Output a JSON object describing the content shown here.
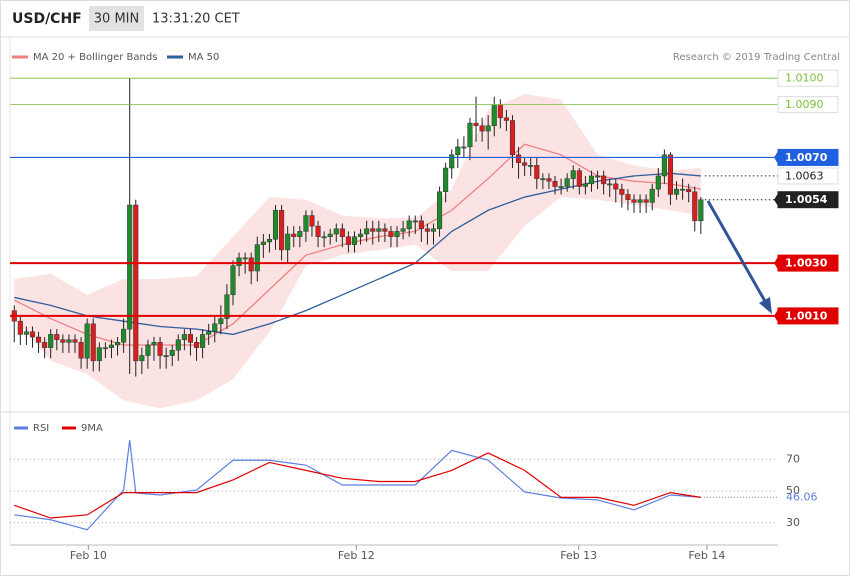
{
  "header": {
    "symbol": "USD/CHF",
    "interval": "30 MIN",
    "time": "13:31:20 CET"
  },
  "chart_data": [
    {
      "type": "candlestick",
      "credit": "Research © 2019 Trading Central",
      "up_color": "#1f8a2a",
      "down_color": "#d81f1f",
      "xlim": [
        -0.7,
        125.7
      ],
      "ylim": [
        0.9974,
        1.0105
      ],
      "x": [
        0,
        1,
        2,
        3,
        4,
        5,
        6,
        7,
        8,
        9,
        10,
        11,
        12,
        13,
        14,
        15,
        16,
        17,
        18,
        19,
        20,
        21,
        22,
        23,
        24,
        25,
        26,
        27,
        28,
        29,
        30,
        31,
        32,
        33,
        34,
        35,
        36,
        37,
        38,
        39,
        40,
        41,
        42,
        43,
        44,
        45,
        46,
        47,
        48,
        49,
        50,
        51,
        52,
        53,
        54,
        55,
        56,
        57,
        58,
        59,
        60,
        61,
        62,
        63,
        64,
        65,
        66,
        67,
        68,
        69,
        70,
        71,
        72,
        73,
        74,
        75,
        76,
        77,
        78,
        79,
        80,
        81,
        82,
        83,
        84,
        85,
        86,
        87,
        88,
        89,
        90,
        91,
        92,
        93,
        94,
        95,
        96,
        97,
        98,
        99,
        100,
        101,
        102,
        103,
        104,
        105,
        106,
        107,
        108,
        109,
        110,
        111,
        112,
        113
      ],
      "open": [
        1.0012,
        1.0008,
        1.0003,
        1.0004,
        1.0002,
        1.0,
        0.9998,
        1.0003,
        1.0001,
        1.0,
        1.0001,
        1.0,
        0.9994,
        1.0007,
        0.9993,
        0.9998,
        0.9998,
        0.9999,
        1.0,
        1.0005,
        1.0052,
        0.9993,
        0.9995,
        0.9999,
        1.0,
        0.9995,
        0.9995,
        0.9997,
        1.0001,
        1.0003,
        1.0,
        0.9998,
        1.0003,
        1.0004,
        1.0007,
        1.0009,
        1.0018,
        1.0029,
        1.0032,
        1.0032,
        1.0027,
        1.0037,
        1.0038,
        1.0039,
        1.005,
        1.0035,
        1.0041,
        1.004,
        1.0042,
        1.0048,
        1.0044,
        1.004,
        1.004,
        1.0041,
        1.0043,
        1.004,
        1.0037,
        1.004,
        1.0041,
        1.0043,
        1.0042,
        1.0043,
        1.0042,
        1.004,
        1.0042,
        1.0043,
        1.0046,
        1.0046,
        1.0043,
        1.0042,
        1.0043,
        1.0057,
        1.0066,
        1.0071,
        1.0074,
        1.0074,
        1.0083,
        1.0082,
        1.008,
        1.0082,
        1.009,
        1.0085,
        1.0084,
        1.0071,
        1.0068,
        1.0067,
        1.0067,
        1.0062,
        1.0062,
        1.0061,
        1.0059,
        1.0059,
        1.0062,
        1.0065,
        1.0059,
        1.006,
        1.0063,
        1.0063,
        1.006,
        1.006,
        1.0058,
        1.0056,
        1.0054,
        1.0053,
        1.0054,
        1.0053,
        1.0058,
        1.0063,
        1.0071,
        1.0056,
        1.0058,
        1.0058,
        1.0057,
        1.0046
      ],
      "high": [
        1.0014,
        1.001,
        1.0006,
        1.0006,
        1.0004,
        1.0002,
        1.0005,
        1.0005,
        1.0003,
        1.0003,
        1.0003,
        1.0002,
        1.0009,
        1.0009,
        1.0,
        1.0,
        1.0001,
        1.0002,
        1.0009,
        1.01,
        1.0054,
        0.9998,
        1.0001,
        1.0002,
        1.0002,
        0.9998,
        0.9999,
        1.0003,
        1.0005,
        1.0005,
        1.0002,
        1.0005,
        1.0007,
        1.001,
        1.0014,
        1.0022,
        1.0031,
        1.0034,
        1.0034,
        1.0034,
        1.004,
        1.0041,
        1.0041,
        1.0052,
        1.0052,
        1.0044,
        1.0044,
        1.0044,
        1.005,
        1.005,
        1.0046,
        1.0042,
        1.0043,
        1.0045,
        1.0045,
        1.0042,
        1.0042,
        1.0043,
        1.0046,
        1.0046,
        1.0046,
        1.0045,
        1.0044,
        1.0044,
        1.0046,
        1.0048,
        1.0048,
        1.0048,
        1.0045,
        1.0045,
        1.0059,
        1.0068,
        1.0073,
        1.0077,
        1.0078,
        1.0085,
        1.0093,
        1.0085,
        1.0086,
        1.0093,
        1.0092,
        1.0088,
        1.0086,
        1.0074,
        1.007,
        1.007,
        1.007,
        1.0064,
        1.0064,
        1.0063,
        1.0062,
        1.0064,
        1.0067,
        1.0066,
        1.0063,
        1.0065,
        1.0065,
        1.0065,
        1.0062,
        1.0062,
        1.006,
        1.0058,
        1.0056,
        1.0056,
        1.0056,
        1.006,
        1.0066,
        1.0073,
        1.0072,
        1.0061,
        1.0062,
        1.006,
        1.0059,
        1.0055
      ],
      "low": [
        1.0,
        0.9999,
        0.9999,
        0.9998,
        0.9996,
        0.9994,
        0.9994,
        0.9997,
        0.9996,
        0.9996,
        0.9996,
        0.999,
        0.999,
        0.9989,
        0.9989,
        0.9994,
        0.9994,
        0.9995,
        0.9996,
        0.9988,
        0.9987,
        0.9988,
        0.999,
        0.9993,
        0.999,
        0.999,
        0.9991,
        0.9993,
        0.9997,
        0.9995,
        0.9993,
        0.9994,
        0.9999,
        1.0,
        1.0003,
        1.0005,
        1.0014,
        1.0025,
        1.0026,
        1.0022,
        1.0023,
        1.0032,
        1.0034,
        1.0035,
        1.0031,
        1.003,
        1.0036,
        1.0036,
        1.0038,
        1.004,
        1.0036,
        1.0036,
        1.0037,
        1.0038,
        1.0036,
        1.0034,
        1.0034,
        1.0037,
        1.0038,
        1.0037,
        1.0038,
        1.0038,
        1.0036,
        1.0036,
        1.0039,
        1.004,
        1.0041,
        1.0038,
        1.0037,
        1.0037,
        1.004,
        1.0053,
        1.0062,
        1.0066,
        1.007,
        1.0069,
        1.0076,
        1.0076,
        1.0073,
        1.0078,
        1.0081,
        1.008,
        1.0066,
        1.0062,
        1.0063,
        1.0063,
        1.0058,
        1.0058,
        1.0058,
        1.0056,
        1.0056,
        1.0057,
        1.0058,
        1.0056,
        1.0056,
        1.0057,
        1.0058,
        1.0056,
        1.0055,
        1.0053,
        1.0051,
        1.005,
        1.0049,
        1.0049,
        1.0049,
        1.005,
        1.0055,
        1.006,
        1.0052,
        1.0054,
        1.0054,
        1.0053,
        1.0042,
        1.0041
      ],
      "close": [
        1.0008,
        1.0003,
        1.0004,
        1.0002,
        1.0,
        0.9998,
        1.0003,
        1.0001,
        1.0,
        1.0001,
        1.0,
        0.9994,
        1.0007,
        0.9993,
        0.9998,
        0.9998,
        0.9999,
        1.0,
        1.0005,
        1.0052,
        0.9993,
        0.9995,
        0.9999,
        1.0,
        0.9995,
        0.9995,
        0.9997,
        1.0001,
        1.0003,
        1.0,
        0.9998,
        1.0003,
        1.0004,
        1.0007,
        1.0009,
        1.0018,
        1.0029,
        1.0032,
        1.0032,
        1.0027,
        1.0037,
        1.0038,
        1.0039,
        1.005,
        1.0035,
        1.0041,
        1.004,
        1.0042,
        1.0048,
        1.0044,
        1.004,
        1.004,
        1.0041,
        1.0043,
        1.004,
        1.0037,
        1.004,
        1.0041,
        1.0043,
        1.0042,
        1.0043,
        1.0042,
        1.004,
        1.0042,
        1.0043,
        1.0046,
        1.0046,
        1.0043,
        1.0042,
        1.0043,
        1.0057,
        1.0066,
        1.0071,
        1.0074,
        1.0074,
        1.0083,
        1.0082,
        1.008,
        1.0082,
        1.009,
        1.0085,
        1.0084,
        1.0071,
        1.0068,
        1.0067,
        1.0067,
        1.0062,
        1.0062,
        1.0061,
        1.0059,
        1.0059,
        1.0062,
        1.0065,
        1.0059,
        1.006,
        1.0063,
        1.0063,
        1.006,
        1.006,
        1.0058,
        1.0056,
        1.0054,
        1.0053,
        1.0054,
        1.0053,
        1.0058,
        1.0063,
        1.0071,
        1.0056,
        1.0058,
        1.0058,
        1.0057,
        1.0046,
        1.0054
      ],
      "series": [
        {
          "name": "MA 20 + Bollinger Bands",
          "color": "#f07f7f",
          "x": [
            0,
            6,
            12,
            18,
            24,
            30,
            36,
            42,
            48,
            54,
            60,
            66,
            72,
            78,
            84,
            90,
            96,
            102,
            108,
            113
          ],
          "values": [
            1.0016,
            1.0009,
            1.0003,
            0.9999,
            0.9999,
            0.9999,
            1.0007,
            1.002,
            1.0033,
            1.0037,
            1.004,
            1.0042,
            1.005,
            1.0062,
            1.0075,
            1.0071,
            1.0063,
            1.0061,
            1.006,
            1.0058
          ],
          "upper": [
            1.0024,
            1.0026,
            1.0018,
            1.0024,
            1.0024,
            1.0025,
            1.004,
            1.0055,
            1.0054,
            1.0048,
            1.0047,
            1.0047,
            1.0058,
            1.0088,
            1.0094,
            1.0092,
            1.0071,
            1.0067,
            1.0065,
            1.0066
          ],
          "lower": [
            1.0009,
            0.9993,
            0.9988,
            0.9978,
            0.9975,
            0.9978,
            0.9986,
            1.0004,
            1.0029,
            1.0033,
            1.0035,
            1.0037,
            1.0027,
            1.0027,
            1.0044,
            1.0055,
            1.0054,
            1.0052,
            1.005,
            1.0048
          ]
        },
        {
          "name": "MA 50",
          "color": "#2f5f9e",
          "x": [
            0,
            6,
            12,
            18,
            24,
            30,
            36,
            42,
            48,
            54,
            60,
            66,
            72,
            78,
            84,
            90,
            96,
            102,
            108,
            113
          ],
          "values": [
            1.0017,
            1.0014,
            1.001,
            1.0008,
            1.0006,
            1.0005,
            1.0003,
            1.0007,
            1.0012,
            1.0018,
            1.0024,
            1.003,
            1.0042,
            1.005,
            1.0055,
            1.0058,
            1.0061,
            1.0063,
            1.0064,
            1.0063
          ]
        }
      ],
      "levels": [
        {
          "value": 1.01,
          "label": "1.0100",
          "color": "#7cbf3a",
          "line": "solid",
          "box": "outline"
        },
        {
          "value": 1.009,
          "label": "1.0090",
          "color": "#7cbf3a",
          "line": "solid",
          "box": "outline"
        },
        {
          "value": 1.007,
          "label": "1.0070",
          "color": "#1f5fe0",
          "line": "solid",
          "box": "filled"
        },
        {
          "value": 1.0063,
          "label": "1.0063",
          "color": "#222222",
          "line": "dotted",
          "box": "outline"
        },
        {
          "value": 1.0054,
          "label": "1.0054",
          "color": "#222222",
          "line": "dotted",
          "box": "filled"
        },
        {
          "value": 1.003,
          "label": "1.0030",
          "color": "#e00000",
          "line": "bold",
          "box": "filled"
        },
        {
          "value": 1.001,
          "label": "1.0010",
          "color": "#e00000",
          "line": "bold",
          "box": "filled"
        }
      ]
    },
    {
      "type": "line",
      "xlim": [
        -0.7,
        125.7
      ],
      "ylim": [
        16,
        96
      ],
      "yticks": [
        30,
        50,
        70
      ],
      "grid": true,
      "xticks": [
        {
          "value": 12.2,
          "label": "Feb 10"
        },
        {
          "value": 56.3,
          "label": "Feb 12"
        },
        {
          "value": 92.9,
          "label": "Feb 13"
        },
        {
          "value": 114,
          "label": "Feb 14"
        }
      ],
      "series": [
        {
          "name": "RSI",
          "color": "#5b7fe0",
          "x": [
            0,
            6,
            12,
            18,
            19,
            20,
            24,
            30,
            36,
            42,
            48,
            54,
            60,
            66,
            72,
            78,
            84,
            90,
            96,
            102,
            108,
            113
          ],
          "values": [
            35,
            31.9,
            25.6,
            50.6,
            82,
            48.8,
            47.5,
            50.6,
            69.4,
            69.4,
            66.3,
            53.8,
            53.8,
            53.8,
            75.6,
            69.4,
            49.4,
            45.6,
            44.4,
            38.1,
            47.5,
            46.06
          ]
        },
        {
          "name": "9MA",
          "color": "#e00000",
          "x": [
            0,
            6,
            12,
            18,
            24,
            30,
            36,
            42,
            48,
            54,
            60,
            66,
            72,
            78,
            84,
            90,
            96,
            102,
            108,
            113
          ],
          "values": [
            41,
            33,
            35,
            49,
            49,
            49,
            57,
            68,
            63,
            58,
            56,
            56,
            63,
            74,
            63,
            46,
            46,
            41,
            49,
            46
          ]
        }
      ]
    }
  ]
}
